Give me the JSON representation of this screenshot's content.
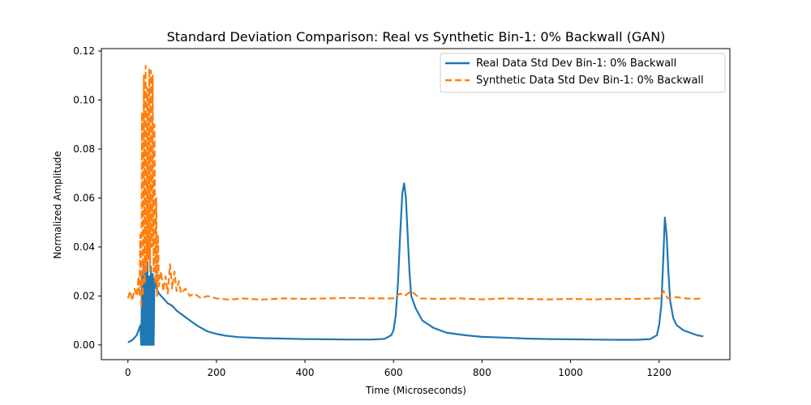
{
  "chart_data": {
    "type": "line",
    "title": "Standard Deviation Comparison: Real vs Synthetic Bin-1: 0% Backwall (GAN)",
    "xlabel": "Time (Microseconds)",
    "ylabel": "Normalized Amplitude",
    "xlim": [
      -60,
      1360
    ],
    "ylim": [
      -0.006,
      0.121
    ],
    "xticks": [
      0,
      200,
      400,
      600,
      800,
      1000,
      1200
    ],
    "yticks": [
      0.0,
      0.02,
      0.04,
      0.06,
      0.08,
      0.1,
      0.12
    ],
    "ytick_labels": [
      "0.00",
      "0.02",
      "0.04",
      "0.06",
      "0.08",
      "0.10",
      "0.12"
    ],
    "legend_position": "top-right",
    "grid": false,
    "series": [
      {
        "name": "Real Data Std Dev Bin-1: 0% Backwall",
        "color": "#1f77b4",
        "style": "solid",
        "points": [
          [
            0,
            0.001
          ],
          [
            10,
            0.002
          ],
          [
            20,
            0.004
          ],
          [
            28,
            0.008
          ],
          [
            30,
            0.0
          ],
          [
            32,
            0.028
          ],
          [
            34,
            0.0
          ],
          [
            36,
            0.033
          ],
          [
            38,
            0.0
          ],
          [
            40,
            0.03
          ],
          [
            42,
            0.0
          ],
          [
            44,
            0.034
          ],
          [
            46,
            0.0
          ],
          [
            48,
            0.028
          ],
          [
            50,
            0.0
          ],
          [
            52,
            0.032
          ],
          [
            54,
            0.0
          ],
          [
            56,
            0.029
          ],
          [
            58,
            0.0
          ],
          [
            60,
            0.027
          ],
          [
            62,
            0.025
          ],
          [
            65,
            0.023
          ],
          [
            70,
            0.021
          ],
          [
            80,
            0.019
          ],
          [
            90,
            0.017
          ],
          [
            100,
            0.016
          ],
          [
            110,
            0.014
          ],
          [
            125,
            0.012
          ],
          [
            140,
            0.01
          ],
          [
            160,
            0.0075
          ],
          [
            180,
            0.0055
          ],
          [
            200,
            0.0045
          ],
          [
            220,
            0.0038
          ],
          [
            250,
            0.0032
          ],
          [
            300,
            0.0028
          ],
          [
            350,
            0.0026
          ],
          [
            400,
            0.0024
          ],
          [
            450,
            0.0023
          ],
          [
            500,
            0.0022
          ],
          [
            550,
            0.0022
          ],
          [
            580,
            0.0025
          ],
          [
            595,
            0.004
          ],
          [
            600,
            0.006
          ],
          [
            605,
            0.012
          ],
          [
            610,
            0.025
          ],
          [
            615,
            0.045
          ],
          [
            620,
            0.062
          ],
          [
            624,
            0.066
          ],
          [
            628,
            0.06
          ],
          [
            632,
            0.045
          ],
          [
            636,
            0.03
          ],
          [
            640,
            0.02
          ],
          [
            650,
            0.015
          ],
          [
            665,
            0.01
          ],
          [
            690,
            0.007
          ],
          [
            720,
            0.005
          ],
          [
            760,
            0.004
          ],
          [
            800,
            0.0033
          ],
          [
            850,
            0.003
          ],
          [
            900,
            0.0026
          ],
          [
            950,
            0.0024
          ],
          [
            1000,
            0.0023
          ],
          [
            1050,
            0.0022
          ],
          [
            1100,
            0.0021
          ],
          [
            1150,
            0.0021
          ],
          [
            1180,
            0.0024
          ],
          [
            1195,
            0.004
          ],
          [
            1200,
            0.008
          ],
          [
            1205,
            0.016
          ],
          [
            1209,
            0.033
          ],
          [
            1213,
            0.052
          ],
          [
            1217,
            0.045
          ],
          [
            1221,
            0.03
          ],
          [
            1225,
            0.018
          ],
          [
            1232,
            0.011
          ],
          [
            1240,
            0.008
          ],
          [
            1255,
            0.006
          ],
          [
            1270,
            0.005
          ],
          [
            1285,
            0.004
          ],
          [
            1300,
            0.0035
          ]
        ]
      },
      {
        "name": "Synthetic Data Std Dev Bin-1: 0% Backwall",
        "color": "#ff7f0e",
        "style": "dashed",
        "points": [
          [
            0,
            0.019
          ],
          [
            5,
            0.022
          ],
          [
            10,
            0.018
          ],
          [
            15,
            0.023
          ],
          [
            20,
            0.02
          ],
          [
            24,
            0.028
          ],
          [
            26,
            0.02
          ],
          [
            28,
            0.045
          ],
          [
            30,
            0.015
          ],
          [
            32,
            0.095
          ],
          [
            34,
            0.02
          ],
          [
            36,
            0.11
          ],
          [
            38,
            0.025
          ],
          [
            40,
            0.114
          ],
          [
            42,
            0.03
          ],
          [
            44,
            0.105
          ],
          [
            46,
            0.035
          ],
          [
            48,
            0.113
          ],
          [
            50,
            0.03
          ],
          [
            52,
            0.112
          ],
          [
            54,
            0.04
          ],
          [
            56,
            0.11
          ],
          [
            58,
            0.03
          ],
          [
            60,
            0.09
          ],
          [
            62,
            0.025
          ],
          [
            64,
            0.06
          ],
          [
            66,
            0.02
          ],
          [
            68,
            0.045
          ],
          [
            70,
            0.024
          ],
          [
            75,
            0.03
          ],
          [
            80,
            0.022
          ],
          [
            85,
            0.028
          ],
          [
            90,
            0.021
          ],
          [
            95,
            0.033
          ],
          [
            100,
            0.023
          ],
          [
            105,
            0.03
          ],
          [
            110,
            0.022
          ],
          [
            115,
            0.026
          ],
          [
            120,
            0.021
          ],
          [
            130,
            0.023
          ],
          [
            140,
            0.02
          ],
          [
            150,
            0.021
          ],
          [
            165,
            0.019
          ],
          [
            180,
            0.02
          ],
          [
            200,
            0.019
          ],
          [
            230,
            0.0185
          ],
          [
            260,
            0.019
          ],
          [
            300,
            0.0185
          ],
          [
            350,
            0.019
          ],
          [
            400,
            0.0188
          ],
          [
            450,
            0.019
          ],
          [
            500,
            0.0192
          ],
          [
            550,
            0.019
          ],
          [
            600,
            0.019
          ],
          [
            615,
            0.021
          ],
          [
            625,
            0.02
          ],
          [
            640,
            0.022
          ],
          [
            660,
            0.019
          ],
          [
            700,
            0.0188
          ],
          [
            750,
            0.019
          ],
          [
            800,
            0.0186
          ],
          [
            850,
            0.019
          ],
          [
            900,
            0.0188
          ],
          [
            950,
            0.0186
          ],
          [
            1000,
            0.0188
          ],
          [
            1050,
            0.0186
          ],
          [
            1100,
            0.0188
          ],
          [
            1150,
            0.0188
          ],
          [
            1200,
            0.019
          ],
          [
            1210,
            0.022
          ],
          [
            1220,
            0.019
          ],
          [
            1240,
            0.0195
          ],
          [
            1260,
            0.019
          ],
          [
            1280,
            0.0188
          ],
          [
            1300,
            0.019
          ]
        ]
      }
    ]
  }
}
